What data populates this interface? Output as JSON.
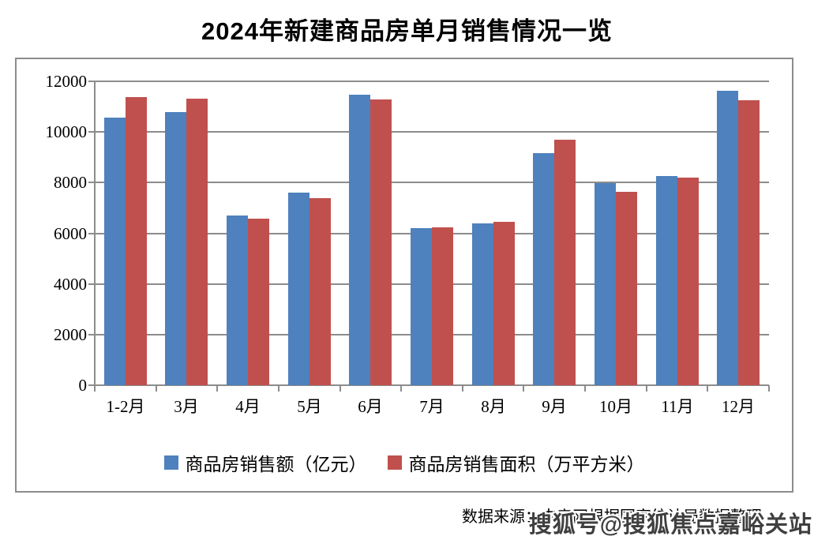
{
  "title": "2024年新建商品房单月销售情况一览",
  "chart_data": {
    "type": "bar",
    "title": "2024年新建商品房单月销售情况一览",
    "categories": [
      "1-2月",
      "3月",
      "4月",
      "5月",
      "6月",
      "7月",
      "8月",
      "9月",
      "10月",
      "11月",
      "12月"
    ],
    "series": [
      {
        "name": "商品房销售额（亿元）",
        "color": "#4E81BD",
        "values": [
          10566,
          10789,
          6712,
          7598,
          11468,
          6197,
          6393,
          9157,
          7975,
          8270,
          11625
        ]
      },
      {
        "name": "商品房销售面积（万平方米）",
        "color": "#C0504D",
        "values": [
          11369,
          11299,
          6584,
          7390,
          11274,
          6233,
          6453,
          9682,
          7646,
          8188,
          11267
        ]
      }
    ],
    "ylim": [
      0,
      12000
    ],
    "yticks": [
      0,
      2000,
      4000,
      6000,
      8000,
      10000,
      12000
    ],
    "grid": true,
    "legend_position": "bottom",
    "colors": {
      "gridline": "#8c8c8c",
      "chart_border": "#8c8c8c",
      "axis_text": "#000000",
      "title_text": "#000000"
    }
  },
  "footer": {
    "source_note": "数据来源：中房网根据国家统计局数据整理",
    "watermark": "搜狐号@搜狐焦点嘉峪关站"
  }
}
